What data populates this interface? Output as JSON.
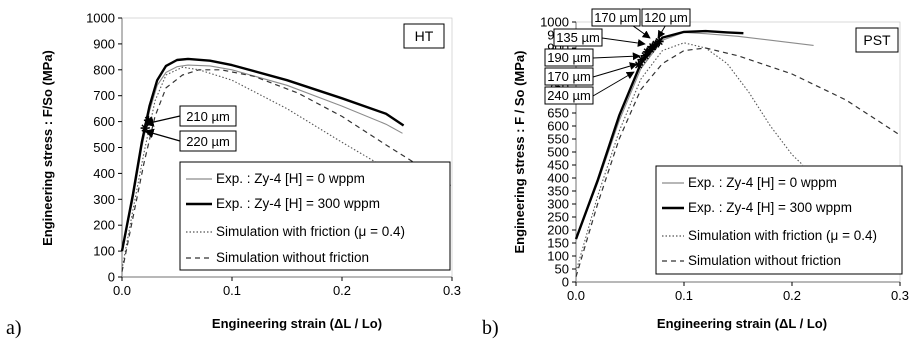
{
  "chart_data": [
    {
      "type": "line",
      "panel_label": "a)",
      "tag": "HT",
      "xlabel": "Engineering strain (ΔL / Lo)",
      "ylabel": "Engineering stress : F/So (MPa)",
      "xlim": [
        0,
        0.3
      ],
      "ylim": [
        0,
        1000
      ],
      "x_ticks": [
        "0.0",
        "0.1",
        "0.2",
        "0.3"
      ],
      "y_ticks": [
        "0",
        "100",
        "200",
        "300",
        "400",
        "500",
        "600",
        "700",
        "800",
        "900",
        "1000"
      ],
      "legend_position": "bottom-right",
      "series": [
        {
          "name": "Exp. : Zy-4 [H] = 0 wppm",
          "style": "thin-solid",
          "color": "#8c8c8c",
          "points": [
            [
              0,
              100
            ],
            [
              0.01,
              300
            ],
            [
              0.018,
              500
            ],
            [
              0.025,
              640
            ],
            [
              0.032,
              740
            ],
            [
              0.04,
              790
            ],
            [
              0.05,
              812
            ],
            [
              0.06,
              818
            ],
            [
              0.08,
              815
            ],
            [
              0.1,
              800
            ],
            [
              0.15,
              740
            ],
            [
              0.2,
              660
            ],
            [
              0.24,
              590
            ],
            [
              0.255,
              555
            ]
          ]
        },
        {
          "name": "Exp. : Zy-4 [H] = 300 wppm",
          "style": "thick-solid",
          "color": "#000000",
          "points": [
            [
              0,
              100
            ],
            [
              0.01,
              320
            ],
            [
              0.018,
              520
            ],
            [
              0.025,
              660
            ],
            [
              0.032,
              760
            ],
            [
              0.04,
              815
            ],
            [
              0.05,
              838
            ],
            [
              0.06,
              842
            ],
            [
              0.08,
              835
            ],
            [
              0.1,
              818
            ],
            [
              0.15,
              760
            ],
            [
              0.2,
              690
            ],
            [
              0.24,
              630
            ],
            [
              0.256,
              585
            ]
          ]
        },
        {
          "name": "Simulation with friction (μ = 0.4)",
          "style": "dotted",
          "color": "#555555",
          "points": [
            [
              0,
              30
            ],
            [
              0.01,
              260
            ],
            [
              0.02,
              480
            ],
            [
              0.03,
              680
            ],
            [
              0.04,
              780
            ],
            [
              0.055,
              810
            ],
            [
              0.07,
              800
            ],
            [
              0.1,
              760
            ],
            [
              0.15,
              650
            ],
            [
              0.2,
              520
            ],
            [
              0.24,
              420
            ],
            [
              0.25,
              395
            ]
          ]
        },
        {
          "name": "Simulation without friction",
          "style": "dashed",
          "color": "#333333",
          "points": [
            [
              0,
              20
            ],
            [
              0.01,
              230
            ],
            [
              0.02,
              440
            ],
            [
              0.03,
              620
            ],
            [
              0.04,
              730
            ],
            [
              0.055,
              780
            ],
            [
              0.07,
              800
            ],
            [
              0.09,
              800
            ],
            [
              0.12,
              775
            ],
            [
              0.16,
              710
            ],
            [
              0.2,
              620
            ],
            [
              0.24,
              510
            ],
            [
              0.27,
              430
            ],
            [
              0.3,
              350
            ]
          ]
        }
      ],
      "markers": [
        {
          "x": 0.021,
          "y": 575
        },
        {
          "x": 0.024,
          "y": 605
        }
      ],
      "annotations": [
        "210 µm",
        "220 µm"
      ]
    },
    {
      "type": "line",
      "panel_label": "b)",
      "tag": "PST",
      "xlabel": "Engineering strain (ΔL / Lo)",
      "ylabel": "Engineering stress : F / So (MPa)",
      "xlim": [
        0,
        0.3
      ],
      "ylim": [
        0,
        1000
      ],
      "x_ticks": [
        "0.0",
        "0.1",
        "0.2",
        "0.3"
      ],
      "y_ticks": [
        "0",
        "50",
        "100",
        "150",
        "200",
        "250",
        "300",
        "350",
        "400",
        "450",
        "500",
        "550",
        "600",
        "650",
        "700",
        "750",
        "800",
        "850",
        "900",
        "950",
        "1000"
      ],
      "legend_position": "bottom-right",
      "series": [
        {
          "name": "Exp. : Zy-4 [H] = 0 wppm",
          "style": "thin-solid",
          "color": "#8c8c8c",
          "points": [
            [
              0,
              165
            ],
            [
              0.02,
              380
            ],
            [
              0.04,
              620
            ],
            [
              0.06,
              820
            ],
            [
              0.08,
              930
            ],
            [
              0.1,
              960
            ],
            [
              0.12,
              955
            ],
            [
              0.15,
              945
            ],
            [
              0.18,
              930
            ],
            [
              0.2,
              920
            ],
            [
              0.22,
              910
            ]
          ]
        },
        {
          "name": "Exp. : Zy-4 [H] = 300 wppm",
          "style": "thick-solid",
          "color": "#000000",
          "points": [
            [
              0,
              165
            ],
            [
              0.02,
              390
            ],
            [
              0.04,
              640
            ],
            [
              0.06,
              840
            ],
            [
              0.08,
              940
            ],
            [
              0.1,
              962
            ],
            [
              0.12,
              965
            ],
            [
              0.14,
              960
            ],
            [
              0.155,
              957
            ]
          ]
        },
        {
          "name": "Simulation with friction (μ = 0.4)",
          "style": "dotted",
          "color": "#555555",
          "points": [
            [
              0,
              40
            ],
            [
              0.02,
              330
            ],
            [
              0.04,
              580
            ],
            [
              0.06,
              780
            ],
            [
              0.08,
              890
            ],
            [
              0.1,
              920
            ],
            [
              0.12,
              900
            ],
            [
              0.14,
              840
            ],
            [
              0.16,
              730
            ],
            [
              0.18,
              600
            ],
            [
              0.2,
              490
            ],
            [
              0.21,
              450
            ]
          ]
        },
        {
          "name": "Simulation without friction",
          "style": "dashed",
          "color": "#333333",
          "points": [
            [
              0,
              20
            ],
            [
              0.02,
              300
            ],
            [
              0.04,
              550
            ],
            [
              0.06,
              740
            ],
            [
              0.08,
              840
            ],
            [
              0.1,
              890
            ],
            [
              0.12,
              900
            ],
            [
              0.15,
              870
            ],
            [
              0.2,
              800
            ],
            [
              0.25,
              700
            ],
            [
              0.3,
              565
            ]
          ]
        }
      ],
      "markers": [
        {
          "x": 0.058,
          "y": 835
        },
        {
          "x": 0.061,
          "y": 855
        },
        {
          "x": 0.064,
          "y": 870
        },
        {
          "x": 0.066,
          "y": 885
        },
        {
          "x": 0.069,
          "y": 895
        },
        {
          "x": 0.071,
          "y": 905
        },
        {
          "x": 0.074,
          "y": 915
        },
        {
          "x": 0.077,
          "y": 925
        }
      ],
      "annotations": [
        "170 µm",
        "120 µm",
        "135 µm",
        "190 µm",
        "170 µm",
        "240 µm"
      ]
    }
  ]
}
